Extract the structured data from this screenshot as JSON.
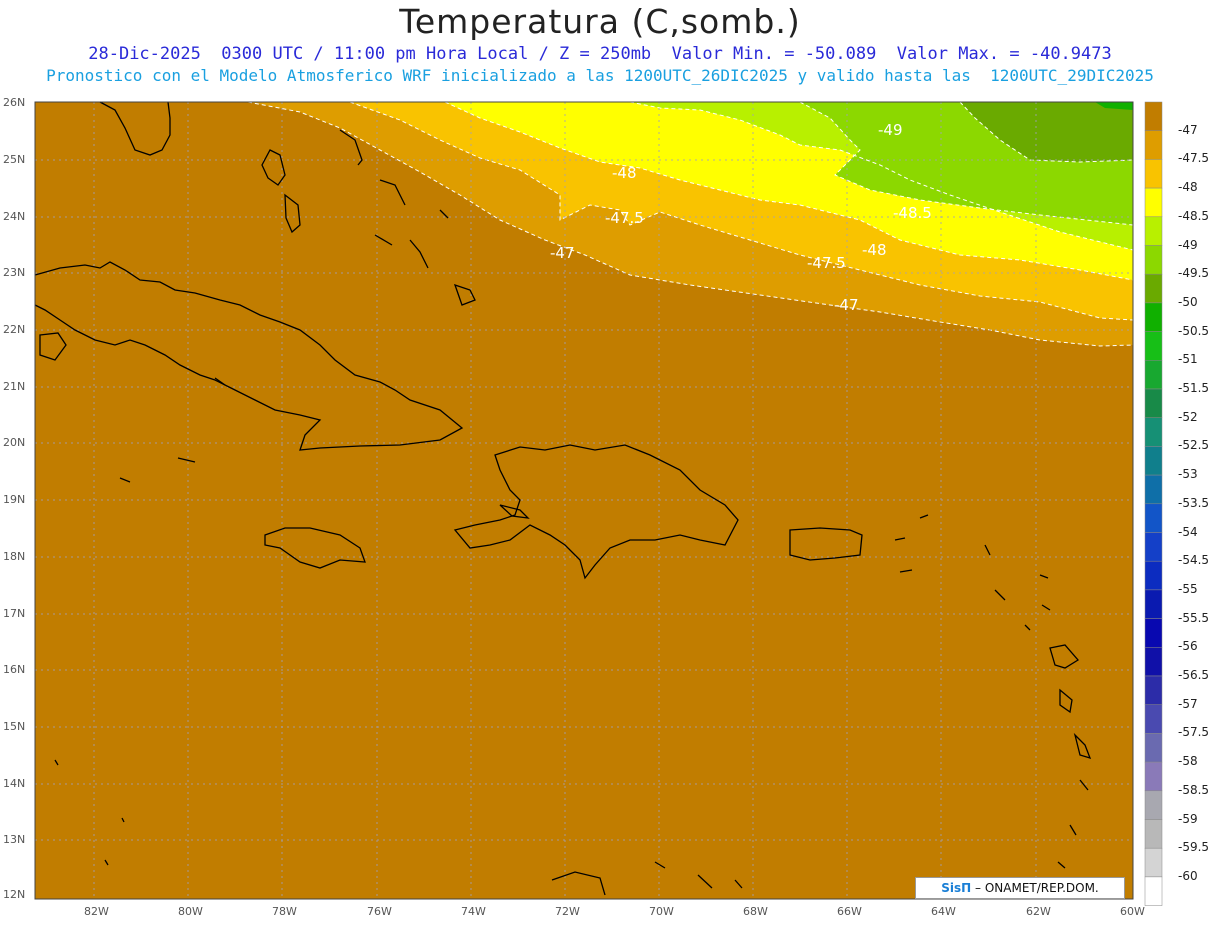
{
  "header": {
    "title": "Temperatura (C,somb.)",
    "line1": "28-Dic-2025  0300 UTC / 11:00 pm Hora Local / Z = 250mb  Valor Min. = -50.089  Valor Max. = -40.9473",
    "line2": "Pronostico con el Modelo Atmosferico WRF inicializado a las 1200UTC_26DIC2025 y valido hasta las  1200UTC_29DIC2025"
  },
  "axes": {
    "lat_labels": [
      "26N",
      "25N",
      "24N",
      "23N",
      "22N",
      "21N",
      "20N",
      "19N",
      "18N",
      "17N",
      "16N",
      "15N",
      "14N",
      "13N",
      "12N"
    ],
    "lon_labels": [
      "82W",
      "80W",
      "78W",
      "76W",
      "74W",
      "72W",
      "70W",
      "68W",
      "66W",
      "64W",
      "62W",
      "60W"
    ]
  },
  "contours": {
    "labels": [
      "-49",
      "-48",
      "-47.5",
      "-48.5",
      "-48",
      "-47.5",
      "-47",
      "-47"
    ]
  },
  "colorbar": {
    "labels": [
      "-47",
      "-47.5",
      "-48",
      "-48.5",
      "-49",
      "-49.5",
      "-50",
      "-50.5",
      "-51",
      "-51.5",
      "-52",
      "-52.5",
      "-53",
      "-53.5",
      "-54",
      "-54.5",
      "-55",
      "-55.5",
      "-56",
      "-56.5",
      "-57",
      "-57.5",
      "-58",
      "-58.5",
      "-59",
      "-59.5",
      "-60"
    ],
    "colors": [
      "#c17d00",
      "#de9d00",
      "#f9c300",
      "#ffff00",
      "#b8f000",
      "#8cd800",
      "#6aaa00",
      "#10b000",
      "#17bf17",
      "#18a830",
      "#188a48",
      "#169075",
      "#107f8c",
      "#0f6fa8",
      "#1255c8",
      "#1440c8",
      "#0c2cc0",
      "#0a1ab0",
      "#0808b0",
      "#1010a8",
      "#2c2ca8",
      "#4a4ab0",
      "#6a6ab0",
      "#8a7ab8",
      "#a8a8b0",
      "#b8b8b8",
      "#d4d4d4",
      "#ffffff"
    ]
  },
  "credit": {
    "brand": "SisΠ",
    "text": "– ONAMET/REP.DOM."
  }
}
